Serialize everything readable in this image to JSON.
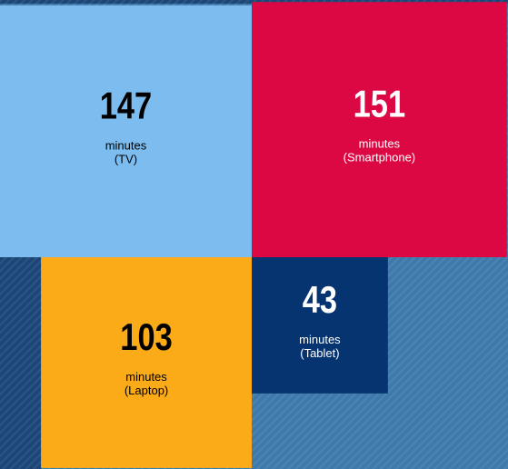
{
  "chart_data": {
    "type": "square",
    "unit": "minutes",
    "categories": [
      "(TV)",
      "(Smartphone)",
      "(Laptop)",
      "(Tablet)"
    ],
    "values": [
      147,
      151,
      103,
      43
    ],
    "colors": [
      "#7cbcee",
      "#dc0843",
      "#fbab18",
      "#063470"
    ],
    "text_colors": [
      "#000000",
      "#ffffff",
      "#000000",
      "#ffffff"
    ]
  }
}
